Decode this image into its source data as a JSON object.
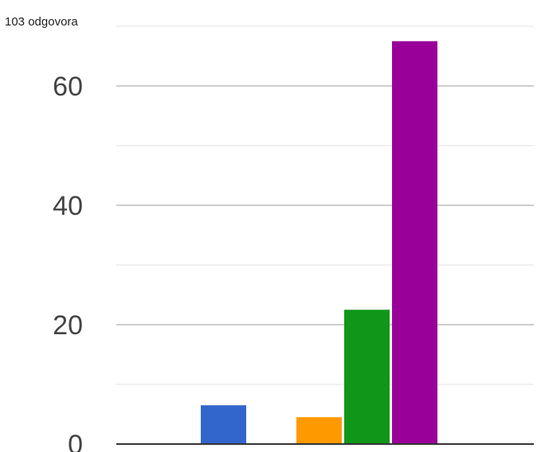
{
  "header": {
    "responses_label": "103 odgovora"
  },
  "chart_data": {
    "type": "bar",
    "title": "",
    "xlabel": "",
    "ylabel": "",
    "ylim": [
      0,
      75
    ],
    "grid": true,
    "yticks": [
      0,
      20,
      40,
      60
    ],
    "bars": [
      {
        "value": 6.5,
        "color": "#3366cc"
      },
      {
        "value": 4.5,
        "color": "#ff9900"
      },
      {
        "value": 22.5,
        "color": "#109618"
      },
      {
        "value": 67.5,
        "color": "#990099"
      }
    ]
  }
}
